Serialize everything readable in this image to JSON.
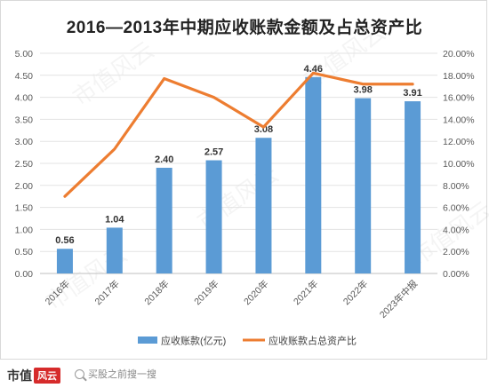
{
  "chart_data": {
    "type": "bar",
    "title": "2016—2013年中期应收账款金额及占总资产比",
    "categories": [
      "2016年",
      "2017年",
      "2018年",
      "2019年",
      "2020年",
      "2021年",
      "2022年",
      "2023年中报"
    ],
    "series": [
      {
        "name": "应收账款(亿元)",
        "type": "bar",
        "axis": "left",
        "color": "#5b9bd5",
        "values": [
          0.56,
          1.04,
          2.4,
          2.57,
          3.08,
          4.46,
          3.98,
          3.91
        ],
        "labels": [
          "0.56",
          "1.04",
          "2.40",
          "2.57",
          "3.08",
          "4.46",
          "3.98",
          "3.91"
        ]
      },
      {
        "name": "应收账款占总资产比",
        "type": "line",
        "axis": "right",
        "color": "#ed7d31",
        "values": [
          7.0,
          11.3,
          17.7,
          16.0,
          13.3,
          18.2,
          17.2,
          17.2
        ]
      }
    ],
    "y_left": {
      "min": 0,
      "max": 5,
      "step": 0.5,
      "ticks": [
        "0.00",
        "0.50",
        "1.00",
        "1.50",
        "2.00",
        "2.50",
        "3.00",
        "3.50",
        "4.00",
        "4.50",
        "5.00"
      ]
    },
    "y_right": {
      "min": 0,
      "max": 20,
      "step": 2,
      "ticks": [
        "0.00%",
        "2.00%",
        "4.00%",
        "6.00%",
        "8.00%",
        "10.00%",
        "12.00%",
        "14.00%",
        "16.00%",
        "18.00%",
        "20.00%"
      ]
    },
    "grid": true,
    "legend_position": "bottom"
  },
  "watermark": "市值风云",
  "footer": {
    "brand": "市值",
    "brand_mark": "风云",
    "search_placeholder": "买股之前搜一搜"
  }
}
